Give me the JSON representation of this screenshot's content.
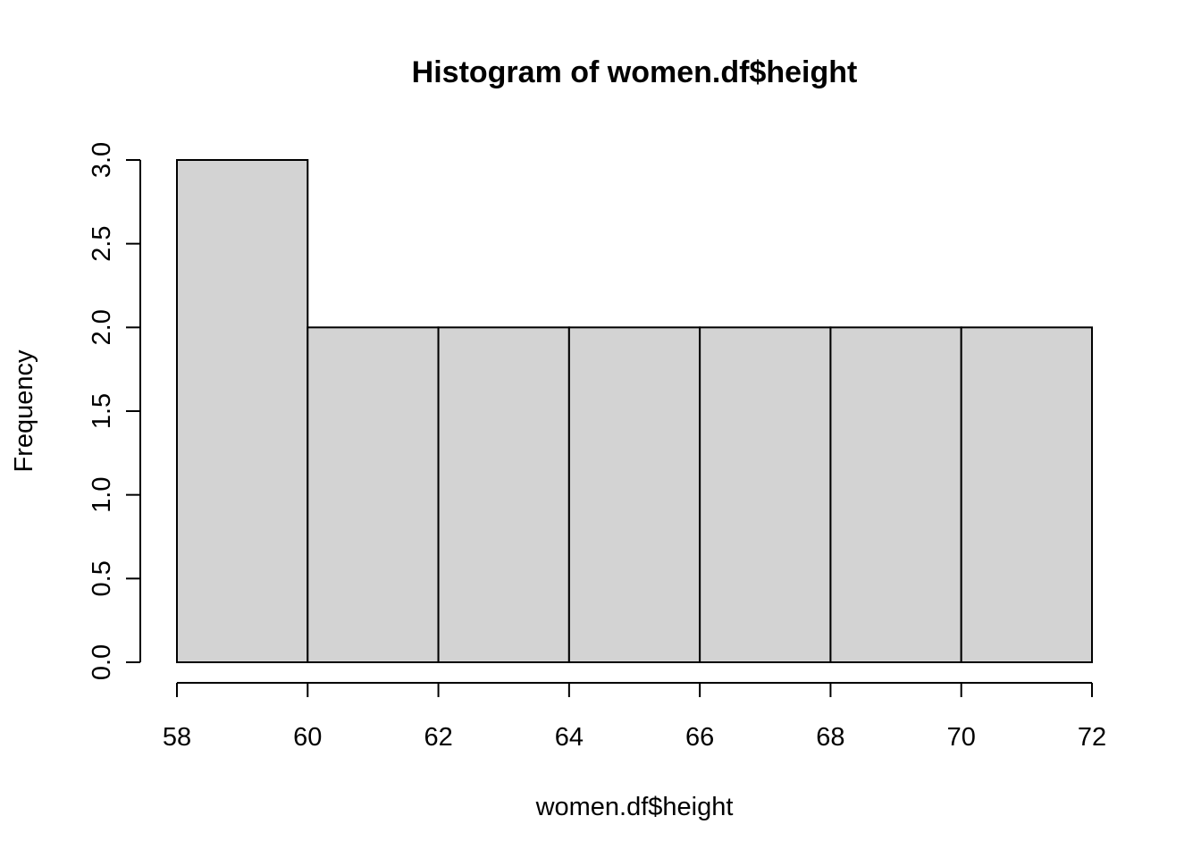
{
  "chart_data": {
    "type": "bar",
    "title": "Histogram of women.df$height",
    "xlabel": "women.df$height",
    "ylabel": "Frequency",
    "bins": [
      {
        "from": 58,
        "to": 60,
        "count": 3
      },
      {
        "from": 60,
        "to": 62,
        "count": 2
      },
      {
        "from": 62,
        "to": 64,
        "count": 2
      },
      {
        "from": 64,
        "to": 66,
        "count": 2
      },
      {
        "from": 66,
        "to": 68,
        "count": 2
      },
      {
        "from": 68,
        "to": 70,
        "count": 2
      },
      {
        "from": 70,
        "to": 72,
        "count": 2
      }
    ],
    "xlim": [
      58,
      72
    ],
    "ylim": [
      0,
      3
    ],
    "x_ticks": [
      "58",
      "60",
      "62",
      "64",
      "66",
      "68",
      "70",
      "72"
    ],
    "y_ticks": [
      "0.0",
      "0.5",
      "1.0",
      "1.5",
      "2.0",
      "2.5",
      "3.0"
    ],
    "bar_color": "#d3d3d3",
    "grid": false,
    "legend": "none"
  }
}
